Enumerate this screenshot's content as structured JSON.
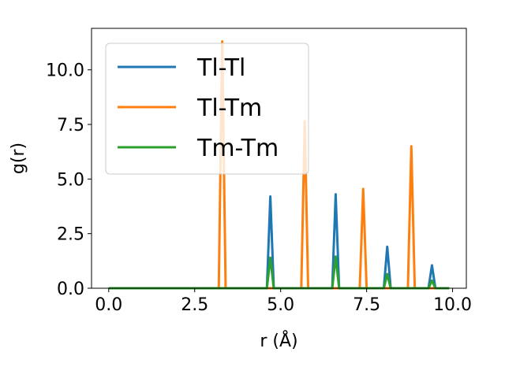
{
  "chart_data": {
    "type": "line",
    "title": "",
    "xlabel": "r (Å)",
    "ylabel": "g(r)",
    "xlim": [
      -0.5,
      10.4
    ],
    "ylim": [
      0,
      11.9
    ],
    "xticks": [
      0.0,
      2.5,
      5.0,
      7.5,
      10.0
    ],
    "xtick_labels": [
      "0.0",
      "2.5",
      "5.0",
      "7.5",
      "10.0"
    ],
    "yticks": [
      0.0,
      2.5,
      5.0,
      7.5,
      10.0
    ],
    "ytick_labels": [
      "0.0",
      "2.5",
      "5.0",
      "7.5",
      "10.0"
    ],
    "grid": false,
    "legend_position": "upper-left",
    "x": [
      0.0,
      3.2,
      3.3,
      3.4,
      4.6,
      4.7,
      4.8,
      5.6,
      5.7,
      5.8,
      6.5,
      6.6,
      6.7,
      7.3,
      7.4,
      7.5,
      8.0,
      8.1,
      8.2,
      8.7,
      8.8,
      8.9,
      9.3,
      9.4,
      9.5,
      9.9
    ],
    "series": [
      {
        "name": "Tl-Tl",
        "color": "#1f77b4",
        "values": [
          0,
          0,
          0,
          0,
          0,
          4.2,
          0,
          0,
          0,
          0,
          0,
          4.3,
          0,
          0,
          0,
          0,
          0,
          1.9,
          0,
          0,
          0,
          0,
          0,
          1.05,
          0,
          0
        ]
      },
      {
        "name": "Tl-Tm",
        "color": "#ff7f0e",
        "values": [
          0,
          0,
          11.3,
          0,
          0,
          0,
          0,
          0,
          7.65,
          0,
          0,
          0,
          0,
          0,
          4.55,
          0,
          0,
          0,
          0,
          0,
          6.5,
          0,
          0,
          0,
          0,
          0
        ]
      },
      {
        "name": "Tm-Tm",
        "color": "#2ca02c",
        "values": [
          0,
          0,
          0,
          0,
          0,
          1.4,
          0,
          0,
          0,
          0,
          0,
          1.45,
          0,
          0,
          0,
          0,
          0,
          0.65,
          0,
          0,
          0,
          0,
          0,
          0.35,
          0,
          0
        ]
      }
    ]
  }
}
